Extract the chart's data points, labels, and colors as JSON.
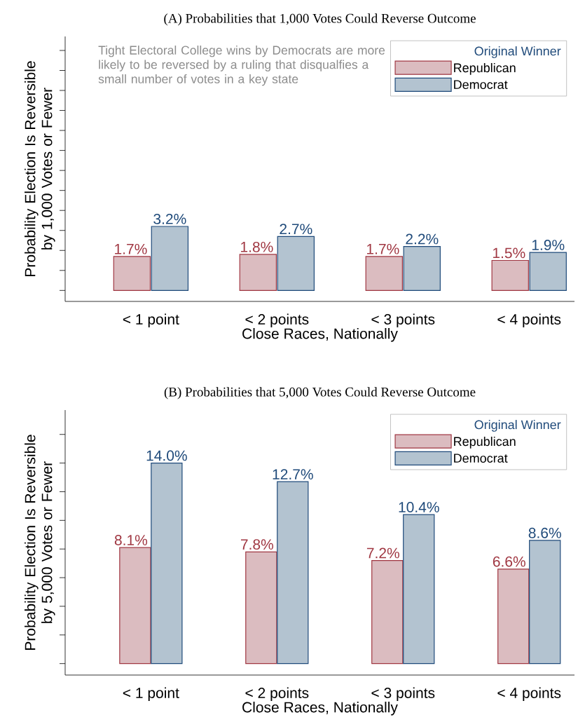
{
  "chart_data": [
    {
      "type": "bar",
      "title": "(A) Probabilities that 1,000 Votes Could Reverse Outcome",
      "xlabel": "Close Races, Nationally",
      "ylabel": "Probability Election Is Reversible by 1,000 Votes or Fewer",
      "categories": [
        "< 1 point",
        "< 2 points",
        "< 3 points",
        "< 4 points"
      ],
      "series": [
        {
          "name": "Republican",
          "color": "#dbbcc0",
          "values": [
            1.7,
            1.8,
            1.7,
            1.5
          ],
          "value_labels": [
            "1.7%",
            "1.8%",
            "1.7%",
            "1.5%"
          ]
        },
        {
          "name": "Democrat",
          "color": "#b3c3d0",
          "values": [
            3.2,
            2.7,
            2.2,
            1.9
          ],
          "value_labels": [
            "3.2%",
            "2.7%",
            "2.2%",
            "1.9%"
          ]
        }
      ],
      "ylim": [
        -0.55,
        12.7
      ],
      "legend": "top right",
      "legend_title": "Original Winner",
      "annotations": [
        "Tight Electoral College wins by Democrats are more likely to be reversed by a ruling that disqualfies a small number of votes in a key state"
      ]
    },
    {
      "type": "bar",
      "title": "(B) Probabilities that 5,000 Votes Could Reverse Outcome",
      "xlabel": "Close Races, Nationally",
      "ylabel": "Probability Election Is Reversible by 5,000 Votes or Fewer",
      "categories": [
        "< 1 point",
        "< 2 points",
        "< 3 points",
        "< 4 points"
      ],
      "series": [
        {
          "name": "Republican",
          "color": "#dbbcc0",
          "values": [
            8.1,
            7.8,
            7.2,
            6.6
          ],
          "value_labels": [
            "8.1%",
            "7.8%",
            "7.2%",
            "6.6%"
          ]
        },
        {
          "name": "Democrat",
          "color": "#b3c3d0",
          "values": [
            14.0,
            12.7,
            10.4,
            8.6
          ],
          "value_labels": [
            "14.0%",
            "12.7%",
            "10.4%",
            "8.6%"
          ]
        }
      ],
      "ylim": [
        -0.8,
        17.7
      ],
      "legend": "top right",
      "legend_title": "Original Winner"
    }
  ]
}
